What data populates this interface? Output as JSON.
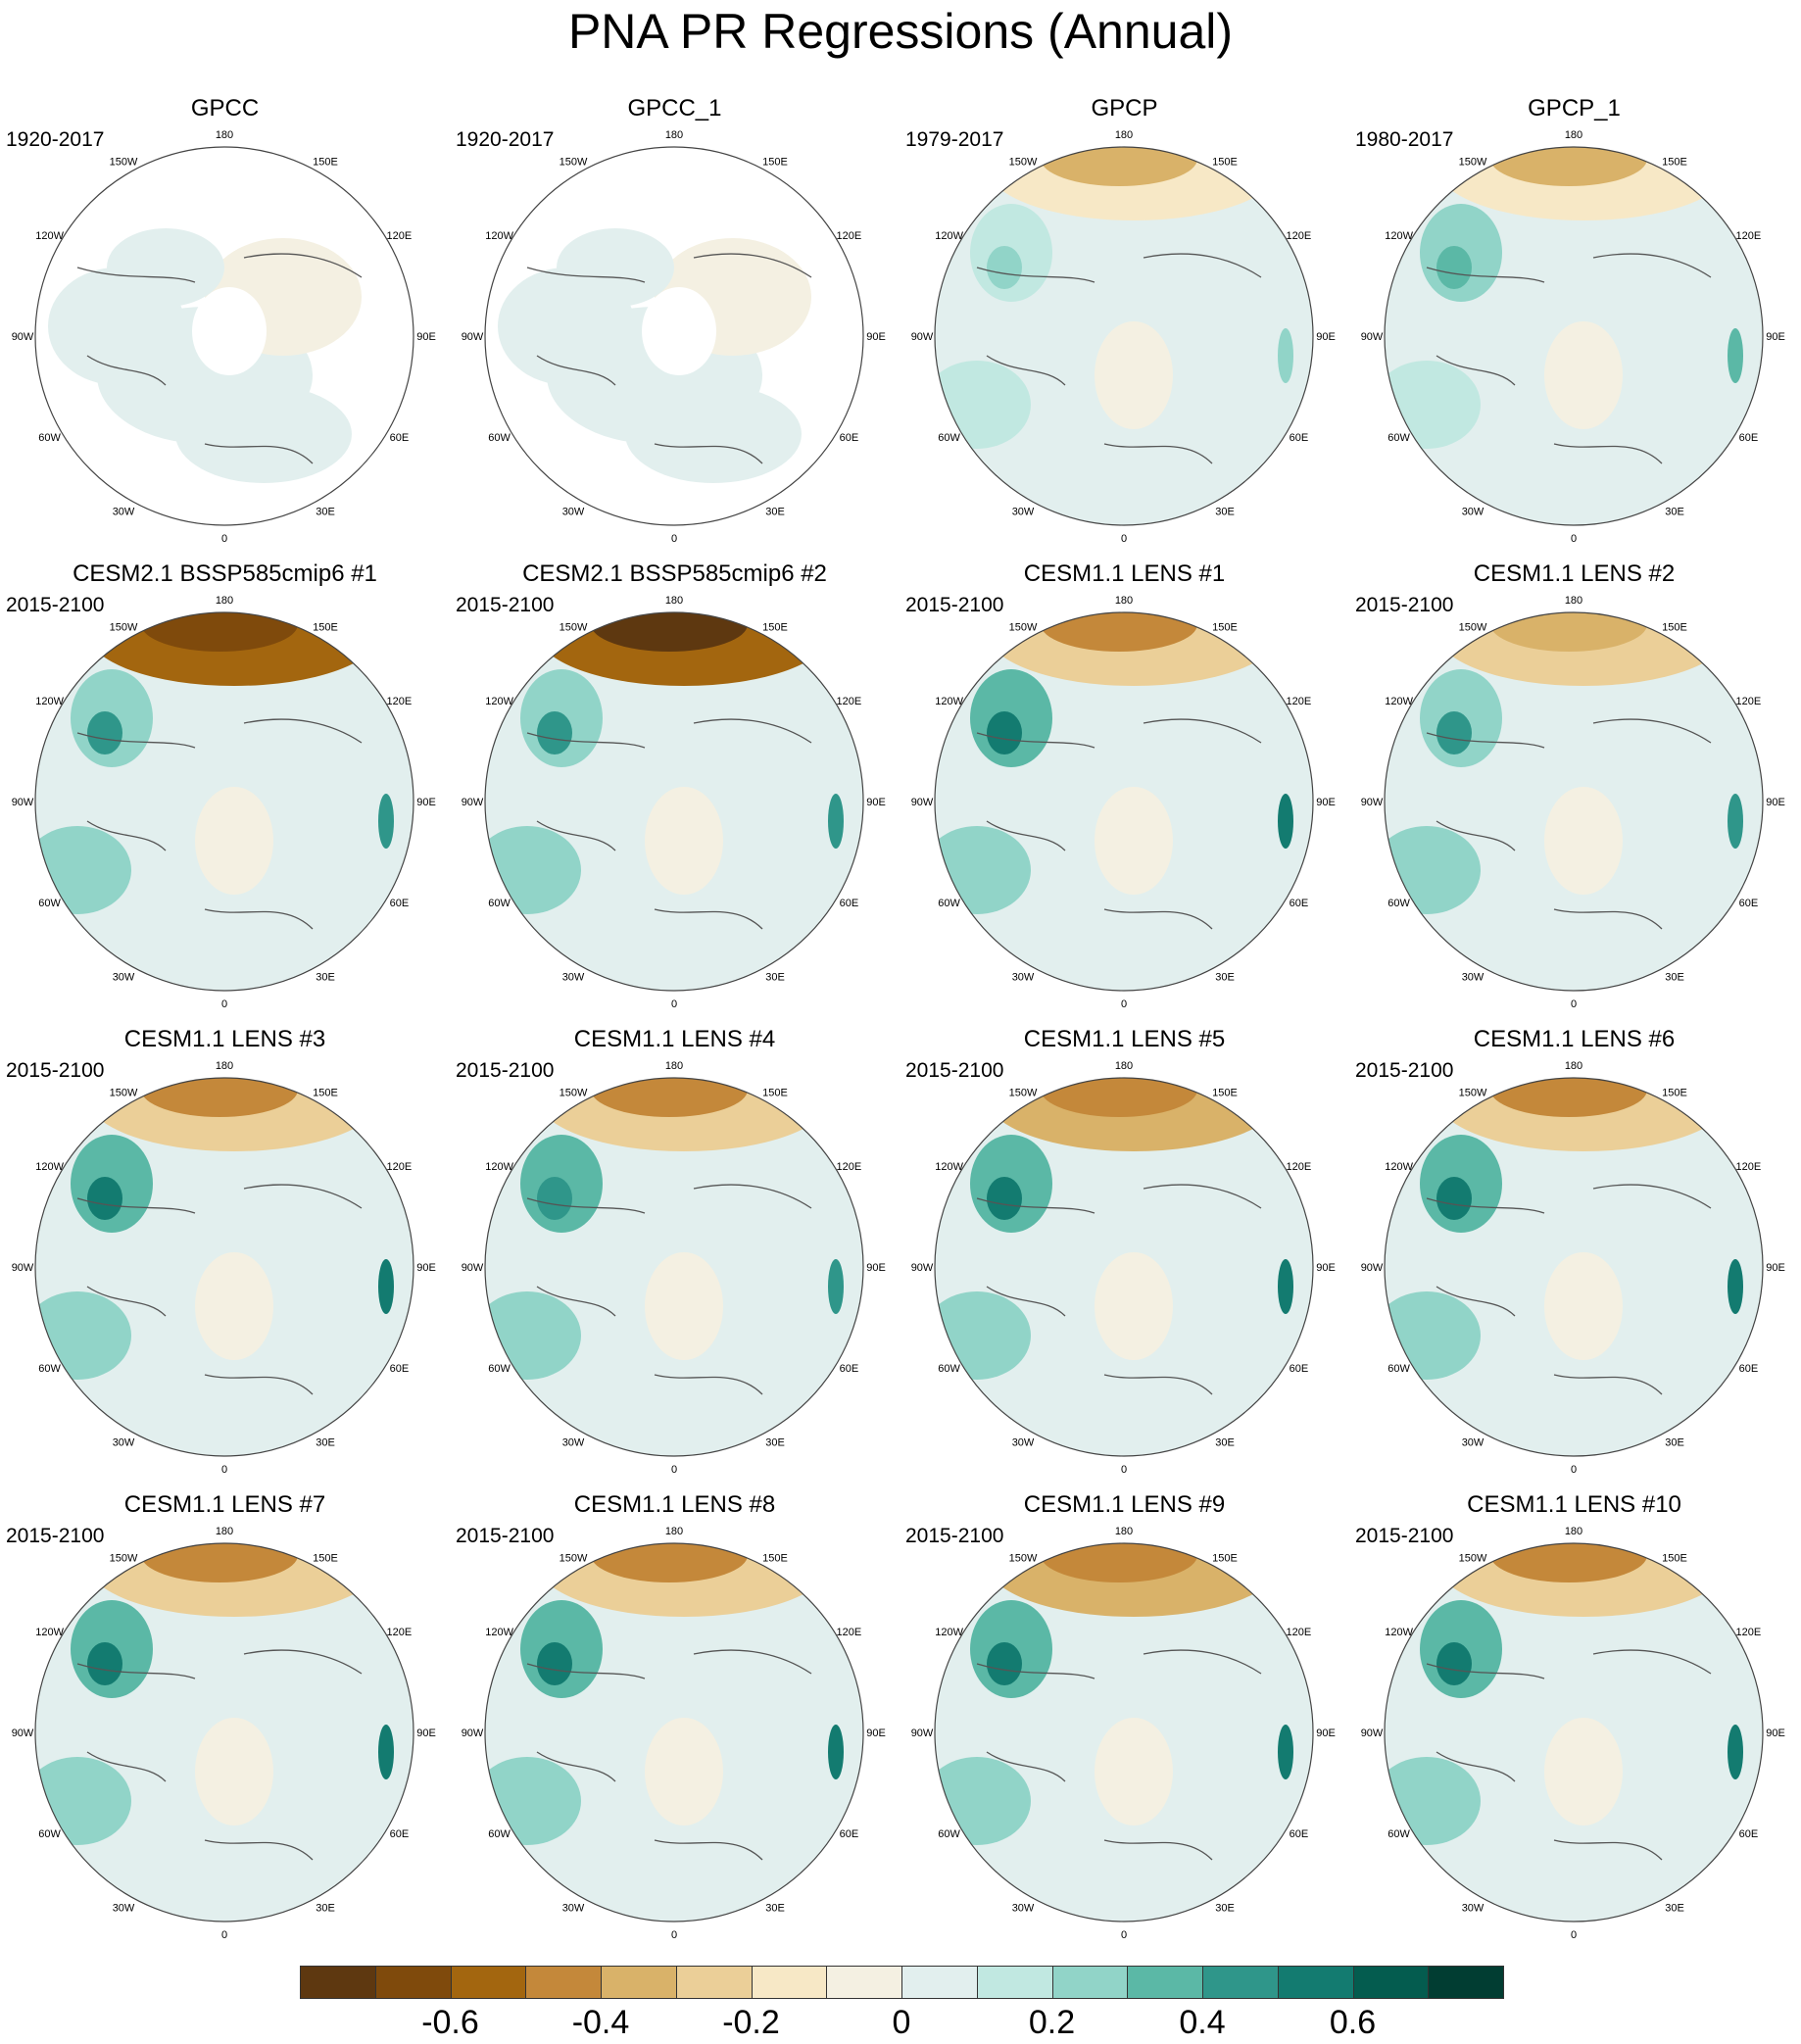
{
  "title": "PNA PR Regressions (Annual)",
  "lon_labels": [
    "180",
    "150E",
    "120E",
    "90E",
    "60E",
    "30E",
    "0",
    "30W",
    "60W",
    "90W",
    "120W",
    "150W"
  ],
  "panels": [
    {
      "title": "GPCC",
      "period": "1920-2017",
      "land_only": true,
      "pacific_dry": 0.0,
      "na_wet": 0.08,
      "coast_wet": 0.12,
      "atl_wet": 0.08
    },
    {
      "title": "GPCC_1",
      "period": "1920-2017",
      "land_only": true,
      "pacific_dry": 0.0,
      "na_wet": 0.08,
      "coast_wet": 0.12,
      "atl_wet": 0.08
    },
    {
      "title": "GPCP",
      "period": "1979-2017",
      "land_only": false,
      "pacific_dry": -0.2,
      "na_wet": 0.18,
      "coast_wet": 0.3,
      "atl_wet": 0.18
    },
    {
      "title": "GPCP_1",
      "period": "1980-2017",
      "land_only": false,
      "pacific_dry": -0.2,
      "na_wet": 0.2,
      "coast_wet": 0.35,
      "atl_wet": 0.18
    },
    {
      "title": "CESM2.1 BSSP585cmip6 #1",
      "period": "2015-2100",
      "land_only": false,
      "pacific_dry": -0.55,
      "na_wet": 0.3,
      "coast_wet": 0.45,
      "atl_wet": 0.3
    },
    {
      "title": "CESM2.1 BSSP585cmip6 #2",
      "period": "2015-2100",
      "land_only": false,
      "pacific_dry": -0.6,
      "na_wet": 0.25,
      "coast_wet": 0.45,
      "atl_wet": 0.25
    },
    {
      "title": "CESM1.1 LENS #1",
      "period": "2015-2100",
      "land_only": false,
      "pacific_dry": -0.3,
      "na_wet": 0.35,
      "coast_wet": 0.55,
      "atl_wet": 0.25
    },
    {
      "title": "CESM1.1 LENS #2",
      "period": "2015-2100",
      "land_only": false,
      "pacific_dry": -0.25,
      "na_wet": 0.3,
      "coast_wet": 0.4,
      "atl_wet": 0.2
    },
    {
      "title": "CESM1.1 LENS #3",
      "period": "2015-2100",
      "land_only": false,
      "pacific_dry": -0.3,
      "na_wet": 0.35,
      "coast_wet": 0.55,
      "atl_wet": 0.25
    },
    {
      "title": "CESM1.1 LENS #4",
      "period": "2015-2100",
      "land_only": false,
      "pacific_dry": -0.3,
      "na_wet": 0.35,
      "coast_wet": 0.45,
      "atl_wet": 0.25
    },
    {
      "title": "CESM1.1 LENS #5",
      "period": "2015-2100",
      "land_only": false,
      "pacific_dry": -0.35,
      "na_wet": 0.35,
      "coast_wet": 0.5,
      "atl_wet": 0.25
    },
    {
      "title": "CESM1.1 LENS #6",
      "period": "2015-2100",
      "land_only": false,
      "pacific_dry": -0.3,
      "na_wet": 0.35,
      "coast_wet": 0.55,
      "atl_wet": 0.25
    },
    {
      "title": "CESM1.1 LENS #7",
      "period": "2015-2100",
      "land_only": false,
      "pacific_dry": -0.3,
      "na_wet": 0.35,
      "coast_wet": 0.55,
      "atl_wet": 0.2
    },
    {
      "title": "CESM1.1 LENS #8",
      "period": "2015-2100",
      "land_only": false,
      "pacific_dry": -0.3,
      "na_wet": 0.35,
      "coast_wet": 0.5,
      "atl_wet": 0.25
    },
    {
      "title": "CESM1.1 LENS #9",
      "period": "2015-2100",
      "land_only": false,
      "pacific_dry": -0.35,
      "na_wet": 0.35,
      "coast_wet": 0.5,
      "atl_wet": 0.2
    },
    {
      "title": "CESM1.1 LENS #10",
      "period": "2015-2100",
      "land_only": false,
      "pacific_dry": -0.3,
      "na_wet": 0.35,
      "coast_wet": 0.55,
      "atl_wet": 0.2
    }
  ],
  "colorbar": {
    "colors": [
      "#5e3810",
      "#7f4a0c",
      "#a3660f",
      "#c4883a",
      "#d9b269",
      "#ebcf98",
      "#f7e8c6",
      "#f4f0e2",
      "#e2efee",
      "#c1e8e1",
      "#91d4c8",
      "#5bb8a6",
      "#2f968a",
      "#137b70",
      "#045c4f",
      "#013d32"
    ],
    "tick_labels": [
      "-0.6",
      "-0.4",
      "-0.2",
      "0",
      "0.2",
      "0.4",
      "0.6"
    ],
    "tick_positions": [
      2,
      4,
      6,
      8,
      10,
      12,
      14
    ]
  }
}
